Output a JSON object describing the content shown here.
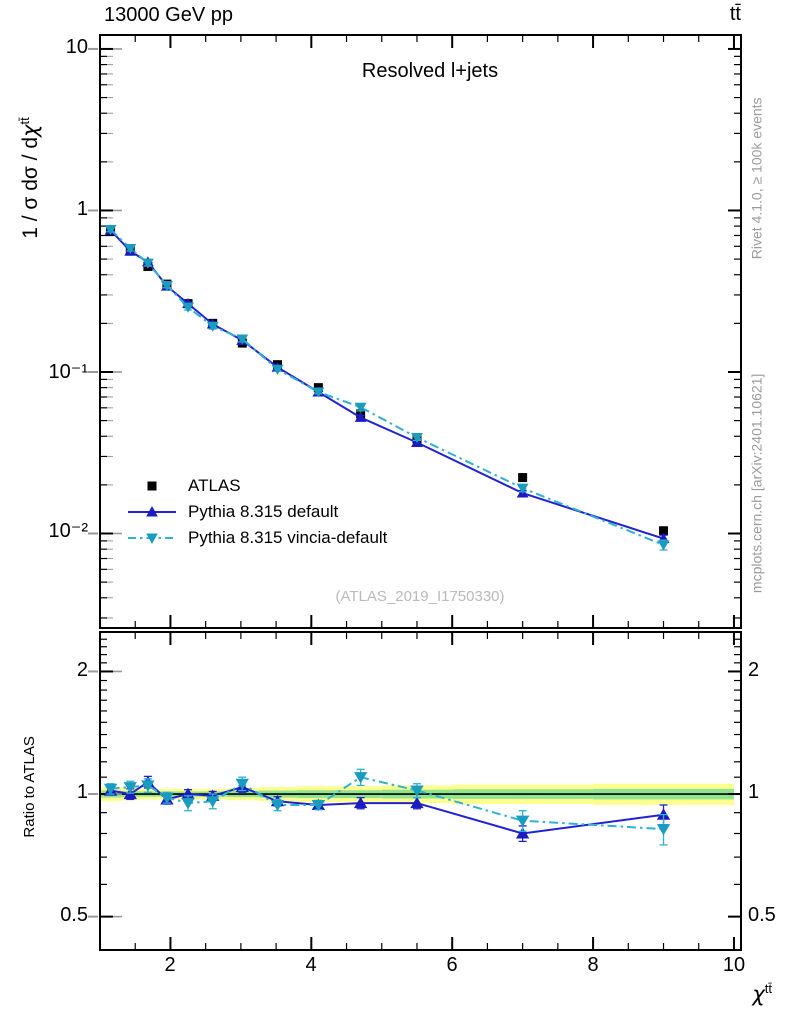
{
  "header": {
    "beam": "13000 GeV pp",
    "process": "tt̄"
  },
  "plot_title": "Resolved l+jets",
  "watermark": "(ATLAS_2019_I1750330)",
  "side_notes": {
    "rivet": "Rivet 4.1.0, ≥ 100k events",
    "mcplots": "mcplots.cern.ch [arXiv:2401.10621]"
  },
  "axes": {
    "y_main_prefix": "1 / σ dσ / d",
    "y_main_symbol": "χ",
    "y_main_sup": "tt̄",
    "y_ratio_label": "Ratio to ATLAS",
    "x_symbol": "χ",
    "x_sup": "tt̄"
  },
  "legend": [
    {
      "label": "ATLAS",
      "marker": "square",
      "color": "#000000"
    },
    {
      "label": "Pythia 8.315 default",
      "marker": "triangle-up",
      "line": "solid",
      "color": "#2020cc"
    },
    {
      "label": "Pythia 8.315 vincia-default",
      "marker": "triangle-down",
      "line": "dash-dot",
      "color": "#2fb0d4"
    }
  ],
  "colors": {
    "atlas": "#000000",
    "default_line": "#2222d0",
    "default_marker": "#1b1bc0",
    "vincia_line": "#2fb0d4",
    "vincia_marker": "#1a9cc0",
    "band_yellow": "#ffff8f",
    "band_green": "#8fe48f"
  },
  "chart_data": {
    "type": "line",
    "title": "Resolved l+jets",
    "xlabel": "χ^tt̄",
    "ylabel": "1/σ dσ/dχ^tt̄",
    "ylabel_ratio": "Ratio to ATLAS",
    "x_scale": "linear",
    "y_scale_main": "log",
    "y_scale_ratio": "log",
    "xlim": [
      1,
      10.1
    ],
    "ylim_main": [
      0.0026,
      12.2
    ],
    "ylim_ratio": [
      0.414,
      2.5
    ],
    "x_major_ticks": [
      2,
      4,
      6,
      8,
      10
    ],
    "x_minor_step": 0.5,
    "y_main_major_ticks": [
      {
        "v": 10,
        "label": "10"
      },
      {
        "v": 1,
        "label": "1"
      },
      {
        "v": 0.1,
        "label": "10⁻¹"
      },
      {
        "v": 0.01,
        "label": "10⁻²"
      }
    ],
    "y_ratio_major_ticks": [
      {
        "v": 2,
        "label": "2"
      },
      {
        "v": 1,
        "label": "1"
      },
      {
        "v": 0.5,
        "label": "0.5"
      }
    ],
    "y_ratio_minor_ticks": [
      0.5,
      0.6,
      0.7,
      0.8,
      0.9,
      1.1,
      1.2,
      1.3,
      1.4,
      1.5,
      1.6,
      1.7,
      1.8,
      1.9,
      2.1,
      2.2,
      2.3,
      2.4
    ],
    "legend_position": "inside-left-middle",
    "bin_edges": [
      1.0,
      1.3,
      1.55,
      1.8,
      2.1,
      2.4,
      2.8,
      3.25,
      3.8,
      4.4,
      5.0,
      6.0,
      8.0,
      10.0
    ],
    "x": [
      1.15,
      1.43,
      1.68,
      1.95,
      2.25,
      2.6,
      3.02,
      3.52,
      4.1,
      4.7,
      5.5,
      7.0,
      9.0
    ],
    "series": [
      {
        "name": "ATLAS",
        "values": [
          0.74,
          0.56,
          0.45,
          0.35,
          0.265,
          0.2,
          0.151,
          0.111,
          0.08,
          0.055,
          0.0385,
          0.0222,
          0.0104
        ]
      },
      {
        "name": "Pythia 8.315 default",
        "values": [
          0.755,
          0.56,
          0.48,
          0.34,
          0.265,
          0.198,
          0.157,
          0.107,
          0.0752,
          0.0523,
          0.0366,
          0.0178,
          0.0093
        ],
        "ratio": [
          1.02,
          1.0,
          1.07,
          0.97,
          1.0,
          0.99,
          1.04,
          0.96,
          0.94,
          0.95,
          0.95,
          0.8,
          0.89
        ],
        "ratio_err": [
          0.025,
          0.03,
          0.035,
          0.025,
          0.025,
          0.025,
          0.03,
          0.025,
          0.02,
          0.03,
          0.03,
          0.035,
          0.05
        ]
      },
      {
        "name": "Pythia 8.315 vincia-default",
        "values": [
          0.762,
          0.582,
          0.472,
          0.343,
          0.252,
          0.192,
          0.16,
          0.104,
          0.0752,
          0.0605,
          0.0393,
          0.0191,
          0.0085
        ],
        "ratio": [
          1.03,
          1.04,
          1.05,
          0.98,
          0.95,
          0.96,
          1.06,
          0.94,
          0.94,
          1.1,
          1.02,
          0.86,
          0.82
        ],
        "ratio_err": [
          0.03,
          0.035,
          0.04,
          0.03,
          0.04,
          0.04,
          0.04,
          0.03,
          0.025,
          0.05,
          0.04,
          0.05,
          0.07
        ]
      }
    ],
    "atlas_uncertainty_band": {
      "yellow_halfwidth": [
        0.04,
        0.035,
        0.03,
        0.03,
        0.03,
        0.03,
        0.035,
        0.04,
        0.045,
        0.045,
        0.05,
        0.055,
        0.06
      ],
      "green_halfwidth": [
        0.02,
        0.017,
        0.015,
        0.015,
        0.015,
        0.015,
        0.017,
        0.02,
        0.022,
        0.022,
        0.025,
        0.027,
        0.03
      ]
    }
  }
}
